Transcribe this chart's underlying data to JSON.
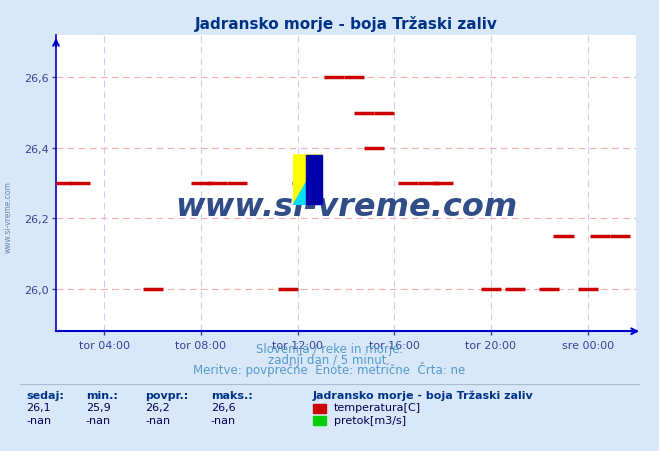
{
  "title": "Jadransko morje - boja Tržaski zaliv",
  "bg_color": "#d8e8f8",
  "plot_bg_color": "#ffffff",
  "grid_hcolor": "#ffaaaa",
  "grid_vcolor": "#ccccff",
  "xlim": [
    0,
    288
  ],
  "ylim_low": 25.88,
  "ylim_high": 26.72,
  "yticks": [
    26.0,
    26.2,
    26.4,
    26.6
  ],
  "ytick_labels": [
    "26,0",
    "26,2",
    "26,4",
    "26,6"
  ],
  "xtick_positions": [
    24,
    72,
    120,
    168,
    216,
    264
  ],
  "xtick_labels": [
    "tor 04:00",
    "tor 08:00",
    "tor 12:00",
    "tor 16:00",
    "tor 20:00",
    "sre 00:00"
  ],
  "temp_data_x": [
    3,
    12,
    48,
    72,
    80,
    90,
    115,
    122,
    138,
    148,
    153,
    158,
    163,
    175,
    185,
    192,
    216,
    228,
    245,
    252,
    264,
    270,
    280
  ],
  "temp_data_y": [
    26.3,
    26.3,
    26.0,
    26.3,
    26.3,
    26.3,
    26.0,
    26.3,
    26.6,
    26.6,
    26.5,
    26.4,
    26.5,
    26.3,
    26.3,
    26.3,
    26.0,
    26.0,
    26.0,
    26.15,
    26.0,
    26.15,
    26.15
  ],
  "line_color": "#cc0000",
  "axis_color": "#0000cc",
  "tick_color": "#334499",
  "title_color": "#003388",
  "subtitle1": "Slovenija / reke in morje.",
  "subtitle2": "zadnji dan / 5 minut.",
  "subtitle3": "Meritve: povprečne  Enote: metrične  Črta: ne",
  "subtitle_color": "#5599cc",
  "watermark": "www.si-vreme.com",
  "watermark_color": "#1a3a7a",
  "legend_title": "Jadransko morje - boja Tržaski zaliv",
  "stat_labels": [
    "sedaj:",
    "min.:",
    "povpr.:",
    "maks.:"
  ],
  "stat_temp": [
    "26,1",
    "25,9",
    "26,2",
    "26,6"
  ],
  "stat_flow": [
    "-nan",
    "-nan",
    "-nan",
    "-nan"
  ],
  "temp_color": "#cc0000",
  "flow_color": "#00cc00",
  "stat_label_color": "#003388",
  "stat_value_color": "#000055"
}
